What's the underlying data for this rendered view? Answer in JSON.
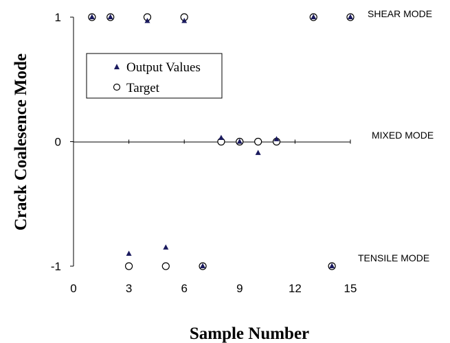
{
  "chart_data": {
    "type": "scatter",
    "xlabel": "Sample Number",
    "ylabel": "Crack Coalesence Mode",
    "xlim": [
      0,
      15
    ],
    "ylim": [
      -1,
      1
    ],
    "x_ticks": [
      "0",
      "3",
      "6",
      "9",
      "12",
      "15"
    ],
    "y_ticks": [
      "1",
      "0",
      "-1"
    ],
    "grid": false,
    "legend_position": "upper-left",
    "mode_labels": [
      "SHEAR MODE",
      "MIXED MODE",
      "TENSILE MODE"
    ],
    "series": [
      {
        "name": "Output Values",
        "marker": "triangle",
        "color": "#1a1a5e",
        "points": [
          {
            "x": 1,
            "y": 1.0
          },
          {
            "x": 2,
            "y": 1.0
          },
          {
            "x": 3,
            "y": -0.9
          },
          {
            "x": 4,
            "y": 0.97
          },
          {
            "x": 5,
            "y": -0.85
          },
          {
            "x": 6,
            "y": 0.97
          },
          {
            "x": 7,
            "y": -1.0
          },
          {
            "x": 8,
            "y": 0.03
          },
          {
            "x": 9,
            "y": 0.0
          },
          {
            "x": 10,
            "y": -0.09
          },
          {
            "x": 11,
            "y": 0.02
          },
          {
            "x": 13,
            "y": 1.0
          },
          {
            "x": 14,
            "y": -1.0
          },
          {
            "x": 15,
            "y": 1.0
          }
        ]
      },
      {
        "name": "Target",
        "marker": "open-circle",
        "color": "#000000",
        "points": [
          {
            "x": 1,
            "y": 1
          },
          {
            "x": 2,
            "y": 1
          },
          {
            "x": 3,
            "y": -1
          },
          {
            "x": 4,
            "y": 1
          },
          {
            "x": 5,
            "y": -1
          },
          {
            "x": 6,
            "y": 1
          },
          {
            "x": 7,
            "y": -1
          },
          {
            "x": 8,
            "y": 0
          },
          {
            "x": 9,
            "y": 0
          },
          {
            "x": 10,
            "y": 0
          },
          {
            "x": 11,
            "y": 0
          },
          {
            "x": 13,
            "y": 1
          },
          {
            "x": 14,
            "y": -1
          },
          {
            "x": 15,
            "y": 1
          }
        ]
      }
    ]
  }
}
